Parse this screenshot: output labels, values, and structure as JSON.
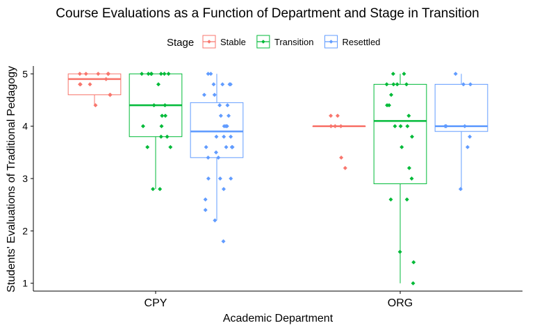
{
  "chart_data": {
    "type": "box",
    "title": "Course Evaluations as a Function of Department and Stage in Transition",
    "xlabel": "Academic Department",
    "ylabel": "Students' Evaluations of Traditional Pedagogy",
    "categories": [
      "CPY",
      "ORG"
    ],
    "ylim": [
      0.85,
      5.15
    ],
    "yticks": [
      1,
      2,
      3,
      4,
      5
    ],
    "grid": false,
    "legend": {
      "title": "Stage",
      "position": "top"
    },
    "series": [
      {
        "name": "Stable",
        "color": "#F8766D",
        "groups": [
          {
            "category": "CPY",
            "min": 4.4,
            "q1": 4.6,
            "median": 4.9,
            "q3": 5.0,
            "max": 5.0,
            "points": [
              5,
              5,
              5,
              5,
              5,
              4.9,
              4.8,
              4.8,
              4.8,
              4.6,
              4.6,
              4.4
            ]
          },
          {
            "category": "ORG",
            "min": 4.0,
            "q1": 4.0,
            "median": 4.0,
            "q3": 4.0,
            "max": 4.0,
            "points": [
              4.2,
              4.2,
              4,
              4,
              4,
              3.4,
              3.2
            ]
          }
        ]
      },
      {
        "name": "Transition",
        "color": "#00BA38",
        "groups": [
          {
            "category": "CPY",
            "min": 2.8,
            "q1": 3.8,
            "median": 4.4,
            "q3": 5.0,
            "max": 5.0,
            "points": [
              5,
              5,
              5,
              5,
              5,
              5,
              5,
              4.8,
              4.4,
              4.4,
              4.2,
              4.2,
              4,
              4,
              3.8,
              3.8,
              3.6,
              3.6,
              2.8,
              2.8
            ]
          },
          {
            "category": "ORG",
            "min": 1.0,
            "q1": 2.9,
            "median": 4.1,
            "q3": 4.8,
            "max": 5.0,
            "points": [
              5,
              5,
              4.8,
              4.8,
              4.8,
              4.8,
              4.6,
              4.4,
              4.4,
              4.2,
              4,
              4,
              4,
              3.8,
              3.6,
              3.2,
              3,
              2.6,
              2.6,
              1.6,
              1.4,
              1
            ]
          }
        ]
      },
      {
        "name": "Resettled",
        "color": "#619CFF",
        "groups": [
          {
            "category": "CPY",
            "min": 2.2,
            "q1": 3.4,
            "median": 3.9,
            "q3": 4.45,
            "max": 5.0,
            "points": [
              5,
              5,
              4.8,
              4.8,
              4.8,
              4.8,
              4.6,
              4.6,
              4.4,
              4.4,
              4.2,
              4.2,
              4,
              4,
              4,
              3.8,
              3.8,
              3.8,
              3.6,
              3.6,
              3.6,
              3.6,
              3.5,
              3.4,
              3.4,
              3,
              3,
              3,
              2.8,
              2.6,
              2.4,
              2.2,
              1.8
            ]
          },
          {
            "category": "ORG",
            "min": 2.8,
            "q1": 3.9,
            "median": 4.0,
            "q3": 4.8,
            "max": 5.0,
            "points": [
              5,
              4.8,
              4.8,
              4,
              4,
              4,
              3.8,
              3.6,
              2.8
            ]
          }
        ]
      }
    ]
  }
}
